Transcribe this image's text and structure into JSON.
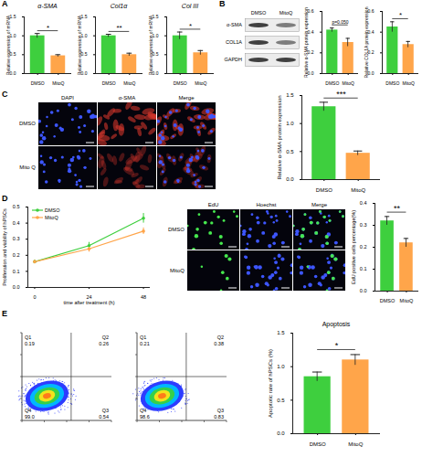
{
  "figure": {
    "panel_labels": [
      "A",
      "B",
      "C",
      "D",
      "E"
    ],
    "blot": {
      "proteins": [
        "α-SMA",
        "COL1A",
        "GAPDH"
      ],
      "lanes": [
        "DMSO",
        "MitoQ"
      ]
    },
    "micrographs_C": {
      "channels": [
        "DAPI",
        "α-SMA",
        "Merge"
      ],
      "conditions": [
        "DMSO",
        "Mito Q"
      ]
    },
    "micrographs_D": {
      "channels": [
        "EdU",
        "Hoechst",
        "Merge"
      ],
      "conditions": [
        "DMSO",
        "MitoQ"
      ]
    },
    "flow_cytometry": [
      {
        "quadrants": [
          {
            "name": "Q1",
            "value": 0.19
          },
          {
            "name": "Q2",
            "value": 0.26
          },
          {
            "name": "Q3",
            "value": 0.54
          },
          {
            "name": "Q4",
            "value": 99,
            "label": "99.0"
          }
        ]
      },
      {
        "quadrants": [
          {
            "name": "Q1",
            "value": 0.21
          },
          {
            "name": "Q2",
            "value": 0.38
          },
          {
            "name": "Q3",
            "value": 0.83
          },
          {
            "name": "Q4",
            "value": 98.6
          }
        ]
      }
    ]
  },
  "chart_data": [
    {
      "type": "bar",
      "title": "α-SMA",
      "ylabel": "Relative expression of mRNA",
      "categories": [
        "DMSO",
        "MitoQ"
      ],
      "values": [
        1.0,
        0.47
      ],
      "errors": [
        0.06,
        0.03
      ],
      "colors": [
        "#3ecf3e",
        "#ffa54a"
      ],
      "ylim": [
        0,
        1.5
      ],
      "yticks": [
        {
          "value": 0,
          "label": "0.0"
        },
        0.5,
        {
          "value": 1,
          "label": "1.0"
        },
        1.5
      ],
      "annotations": [
        "*"
      ]
    },
    {
      "type": "bar",
      "title": "Col1α",
      "ylabel": "Relative expression of mRNA",
      "categories": [
        "DMSO",
        "MitoQ"
      ],
      "values": [
        1.0,
        0.5
      ],
      "errors": [
        0.04,
        0.04
      ],
      "colors": [
        "#3ecf3e",
        "#ffa54a"
      ],
      "ylim": [
        0,
        1.5
      ],
      "yticks": [
        {
          "value": 0,
          "label": "0.0"
        },
        0.5,
        {
          "value": 1,
          "label": "1.0"
        },
        1.5
      ],
      "annotations": [
        "**"
      ]
    },
    {
      "type": "bar",
      "title": "Col III",
      "ylabel": "Relative expression of mRNA",
      "categories": [
        "DMSO",
        "MitoQ"
      ],
      "values": [
        1.0,
        0.55
      ],
      "errors": [
        0.1,
        0.06
      ],
      "colors": [
        "#3ecf3e",
        "#ffa54a"
      ],
      "ylim": [
        0,
        1.5
      ],
      "yticks": [
        {
          "value": 0,
          "label": "0.0"
        },
        0.5,
        {
          "value": 1,
          "label": "1.0"
        },
        1.5
      ],
      "annotations": [
        "*"
      ]
    },
    {
      "type": "bar",
      "ylabel": "Relative α-SMA protein expression",
      "categories": [
        "DMSO",
        "MitoQ"
      ],
      "values": [
        0.42,
        0.3
      ],
      "errors": [
        0.02,
        0.04
      ],
      "colors": [
        "#3ecf3e",
        "#ffa54a"
      ],
      "ylim": [
        0,
        0.6
      ],
      "yticks": [
        {
          "value": 0,
          "label": "0.0"
        },
        0.2,
        0.4,
        0.6
      ],
      "annotations": [
        "p=0.050"
      ]
    },
    {
      "type": "bar",
      "ylabel": "Relative COL1A protein expression",
      "categories": [
        "DMSO",
        "MitoQ"
      ],
      "values": [
        0.45,
        0.28
      ],
      "errors": [
        0.05,
        0.03
      ],
      "colors": [
        "#3ecf3e",
        "#ffa54a"
      ],
      "ylim": [
        0,
        0.6
      ],
      "yticks": [
        {
          "value": 0,
          "label": "0.0"
        },
        0.2,
        0.4,
        0.6
      ],
      "annotations": [
        "*"
      ]
    },
    {
      "type": "bar",
      "ylabel": "Relative α-SMA protein expression",
      "categories": [
        "DMSO",
        "MitoQ"
      ],
      "values": [
        1.3,
        0.47
      ],
      "errors": [
        0.08,
        0.04
      ],
      "colors": [
        "#3ecf3e",
        "#ffa54a"
      ],
      "ylim": [
        0,
        1.5
      ],
      "yticks": [
        {
          "value": 0,
          "label": "0.0"
        },
        0.5,
        {
          "value": 1,
          "label": "1.0"
        },
        1.5
      ],
      "annotations": [
        "***"
      ]
    },
    {
      "type": "line",
      "xlabel": "time after treatment (h)",
      "ylabel": "Proliferation and viability of hPSCs",
      "x": [
        0,
        24,
        48
      ],
      "xlim": [
        -3,
        51
      ],
      "xticks": [
        0,
        24,
        48
      ],
      "ylim": [
        0,
        0.5
      ],
      "yticks": [
        {
          "value": 0,
          "label": "0.0"
        },
        0.1,
        0.2,
        0.3,
        0.4,
        0.5
      ],
      "legend": "top-left",
      "marker": "circle",
      "series": [
        {
          "name": "DMSO",
          "color": "#3ecf3e",
          "values": [
            0.16,
            0.26,
            0.43
          ],
          "errors": [
            0.01,
            0.02,
            0.03
          ]
        },
        {
          "name": "MitoQ",
          "color": "#ffa54a",
          "values": [
            0.16,
            0.24,
            0.35
          ],
          "errors": [
            0.01,
            0.02,
            0.02
          ]
        }
      ]
    },
    {
      "type": "bar",
      "ylabel": "EdU positive cells percentage(%)",
      "categories": [
        "DMSO",
        "MitoQ"
      ],
      "values": [
        0.32,
        0.22
      ],
      "errors": [
        0.02,
        0.02
      ],
      "colors": [
        "#3ecf3e",
        "#ffa54a"
      ],
      "ylim": [
        0,
        0.4
      ],
      "yticks": [
        {
          "value": 0,
          "label": "0.0"
        },
        0.1,
        0.2,
        0.3,
        0.4
      ],
      "annotations": [
        "**"
      ]
    },
    {
      "type": "bar",
      "title": "Apoptosis",
      "ylabel": "Apoptotic rate of hPSCs (%)",
      "categories": [
        "DMSO",
        "MitoQ"
      ],
      "values": [
        0.85,
        1.1
      ],
      "errors": [
        0.07,
        0.08
      ],
      "colors": [
        "#3ecf3e",
        "#ffa54a"
      ],
      "ylim": [
        0,
        1.5
      ],
      "yticks": [
        {
          "value": 0,
          "label": "0.0"
        },
        0.5,
        {
          "value": 1,
          "label": "1.0"
        },
        1.5
      ],
      "annotations": [
        "*"
      ]
    }
  ]
}
